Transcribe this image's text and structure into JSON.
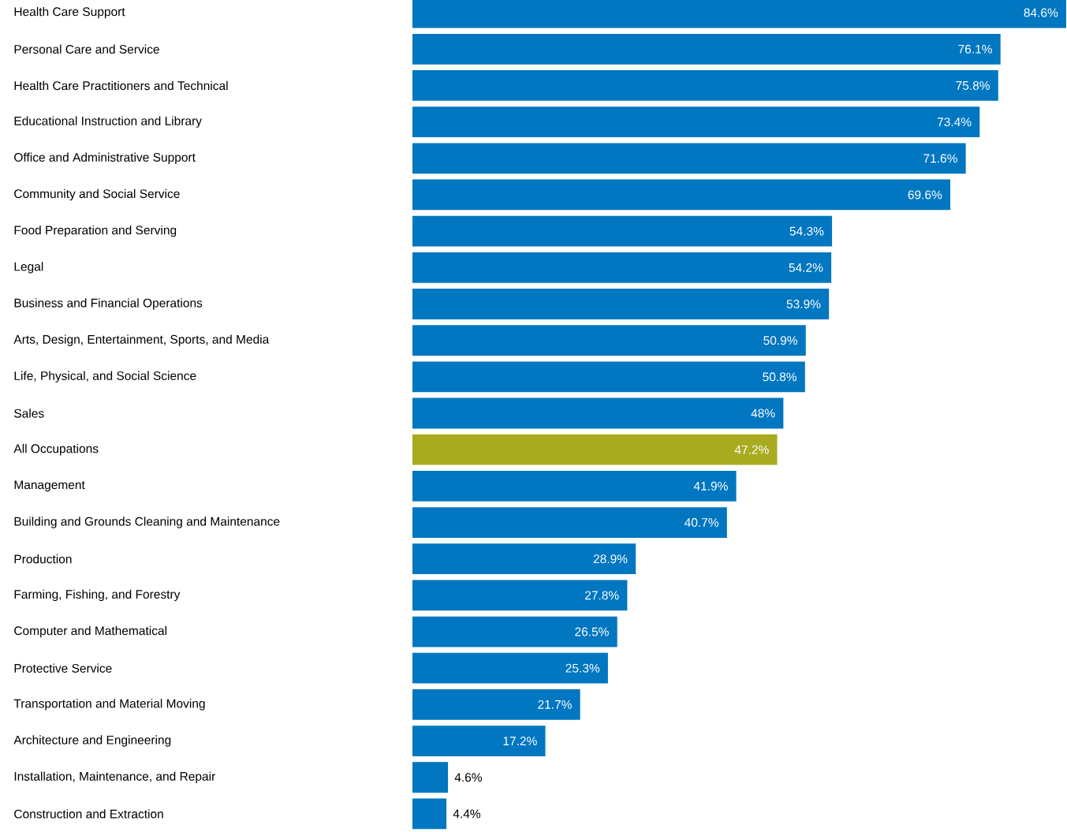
{
  "chart_data": {
    "type": "bar",
    "orientation": "horizontal",
    "categories": [
      "Health Care Support",
      "Personal Care and Service",
      "Health Care Practitioners and Technical",
      "Educational Instruction and Library",
      "Office and Administrative Support",
      "Community and Social Service",
      "Food Preparation and Serving",
      "Legal",
      "Business and Financial Operations",
      "Arts, Design, Entertainment, Sports, and Media",
      "Life, Physical, and Social Science",
      "Sales",
      "All Occupations",
      "Management",
      "Building and Grounds Cleaning and Maintenance",
      "Production",
      "Farming, Fishing, and Forestry",
      "Computer and Mathematical",
      "Protective Service",
      "Transportation and Material Moving",
      "Architecture and Engineering",
      "Installation, Maintenance, and Repair",
      "Construction and Extraction"
    ],
    "values": [
      84.6,
      76.1,
      75.8,
      73.4,
      71.6,
      69.6,
      54.3,
      54.2,
      53.9,
      50.9,
      50.8,
      48,
      47.2,
      41.9,
      40.7,
      28.9,
      27.8,
      26.5,
      25.3,
      21.7,
      17.2,
      4.6,
      4.4
    ],
    "value_labels": [
      "84.6%",
      "76.1%",
      "75.8%",
      "73.4%",
      "71.6%",
      "69.6%",
      "54.3%",
      "54.2%",
      "53.9%",
      "50.9%",
      "50.8%",
      "48%",
      "47.2%",
      "41.9%",
      "40.7%",
      "28.9%",
      "27.8%",
      "26.5%",
      "25.3%",
      "21.7%",
      "17.2%",
      "4.6%",
      "4.4%"
    ],
    "colors": [
      "#0077c0",
      "#0077c0",
      "#0077c0",
      "#0077c0",
      "#0077c0",
      "#0077c0",
      "#0077c0",
      "#0077c0",
      "#0077c0",
      "#0077c0",
      "#0077c0",
      "#0077c0",
      "#a8ab1f",
      "#0077c0",
      "#0077c0",
      "#0077c0",
      "#0077c0",
      "#0077c0",
      "#0077c0",
      "#0077c0",
      "#0077c0",
      "#0077c0",
      "#0077c0"
    ]
  }
}
